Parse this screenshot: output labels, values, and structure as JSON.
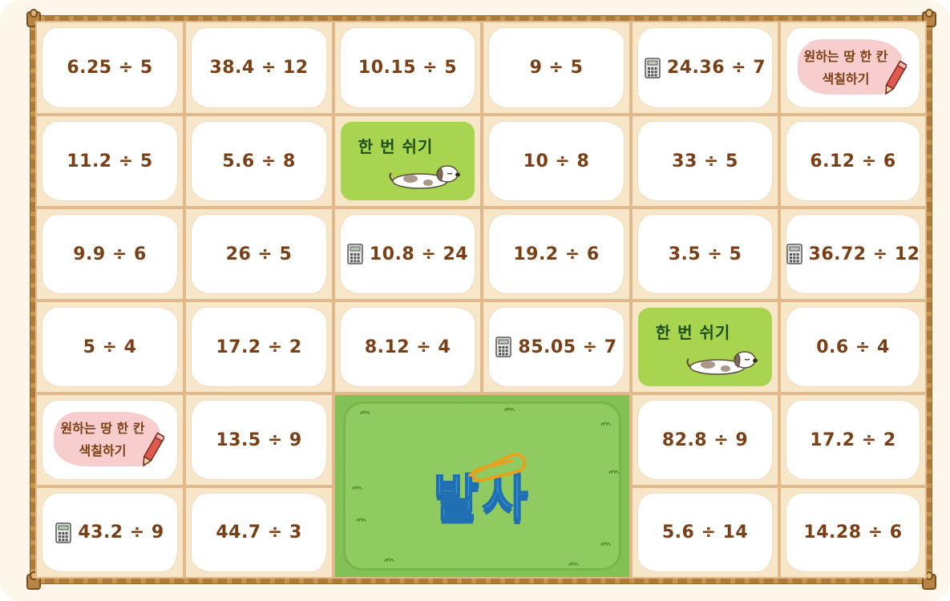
{
  "board": {
    "rows": [
      [
        {
          "type": "math",
          "expr": "6.25 ÷ 5",
          "calculator": false
        },
        {
          "type": "math",
          "expr": "38.4 ÷ 12",
          "calculator": false
        },
        {
          "type": "math",
          "expr": "10.15 ÷ 5",
          "calculator": false
        },
        {
          "type": "math",
          "expr": "9 ÷ 5",
          "calculator": false
        },
        {
          "type": "math",
          "expr": "24.36 ÷ 7",
          "calculator": true
        },
        {
          "type": "color",
          "line1": "원하는 땅 한 칸",
          "line2": "색칠하기"
        }
      ],
      [
        {
          "type": "math",
          "expr": "11.2 ÷ 5",
          "calculator": false
        },
        {
          "type": "math",
          "expr": "5.6 ÷ 8",
          "calculator": false
        },
        {
          "type": "rest",
          "label": "한 번 쉬기"
        },
        {
          "type": "math",
          "expr": "10 ÷ 8",
          "calculator": false
        },
        {
          "type": "math",
          "expr": "33 ÷ 5",
          "calculator": false
        },
        {
          "type": "math",
          "expr": "6.12 ÷ 6",
          "calculator": false
        }
      ],
      [
        {
          "type": "math",
          "expr": "9.9 ÷ 6",
          "calculator": false
        },
        {
          "type": "math",
          "expr": "26 ÷ 5",
          "calculator": false
        },
        {
          "type": "math",
          "expr": "10.8 ÷ 24",
          "calculator": true
        },
        {
          "type": "math",
          "expr": "19.2 ÷ 6",
          "calculator": false
        },
        {
          "type": "math",
          "expr": "3.5 ÷ 5",
          "calculator": false
        },
        {
          "type": "math",
          "expr": "36.72 ÷ 12",
          "calculator": true
        }
      ],
      [
        {
          "type": "math",
          "expr": "5 ÷ 4",
          "calculator": false
        },
        {
          "type": "math",
          "expr": "17.2 ÷ 2",
          "calculator": false
        },
        {
          "type": "math",
          "expr": "8.12 ÷ 4",
          "calculator": false
        },
        {
          "type": "math",
          "expr": "85.05 ÷ 7",
          "calculator": true
        },
        {
          "type": "rest",
          "label": "한 번 쉬기"
        },
        {
          "type": "math",
          "expr": "0.6 ÷ 4",
          "calculator": false
        }
      ],
      [
        {
          "type": "color",
          "line1": "원하는 땅 한 칸",
          "line2": "색칠하기"
        },
        {
          "type": "math",
          "expr": "13.5 ÷ 9",
          "calculator": false
        },
        {
          "type": "launch"
        },
        {
          "type": "launch"
        },
        {
          "type": "math",
          "expr": "82.8 ÷ 9",
          "calculator": false
        },
        {
          "type": "math",
          "expr": "17.2 ÷ 2",
          "calculator": false
        }
      ],
      [
        {
          "type": "math",
          "expr": "43.2 ÷ 9",
          "calculator": true
        },
        {
          "type": "math",
          "expr": "44.7 ÷ 3",
          "calculator": false
        },
        {
          "type": "launch"
        },
        {
          "type": "launch"
        },
        {
          "type": "math",
          "expr": "5.6 ÷ 14",
          "calculator": false
        },
        {
          "type": "math",
          "expr": "14.28 ÷ 6",
          "calculator": false
        }
      ]
    ],
    "launch_label": "발사"
  },
  "colors": {
    "text": "#7a3f14",
    "rest_bg": "#a8d44f",
    "rest_text": "#1d4e1e",
    "launch_bg": "#8fcb60",
    "launch_text": "#3b9be0",
    "color_blob": "#f6c4c4",
    "rope": "#c9964f"
  },
  "icons": {
    "calculator": "calculator-icon",
    "dog": "sleeping-dog-icon",
    "pencil": "pencil-icon",
    "clip": "paperclip-icon"
  }
}
